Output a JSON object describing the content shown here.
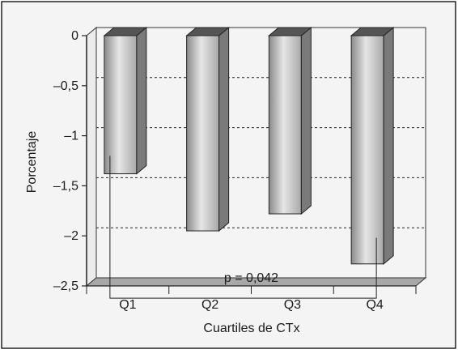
{
  "chart_data": {
    "type": "bar",
    "style": "3d",
    "categories": [
      "Q1",
      "Q2",
      "Q3",
      "Q4"
    ],
    "values": [
      -1.38,
      -1.95,
      -1.78,
      -2.28
    ],
    "xlabel": "Cuartiles de CTx",
    "ylabel": "Porcentaje",
    "ylim": [
      -2.5,
      0
    ],
    "yticks": [
      0,
      -0.5,
      -1,
      -1.5,
      -2,
      -2.5
    ],
    "ytick_labels": [
      "0",
      "–0,5",
      "–1",
      "–1,5",
      "–2",
      "–2,5"
    ],
    "grid": true,
    "annotation": {
      "text": "p = 0,042",
      "from_category": "Q1",
      "to_category": "Q4"
    },
    "colors": {
      "bar_front": "#c8c8c8",
      "bar_side": "#7a7a7a",
      "bar_top": "#555555",
      "floor": "#a8a8a8",
      "background": "#f4f4f4"
    }
  }
}
